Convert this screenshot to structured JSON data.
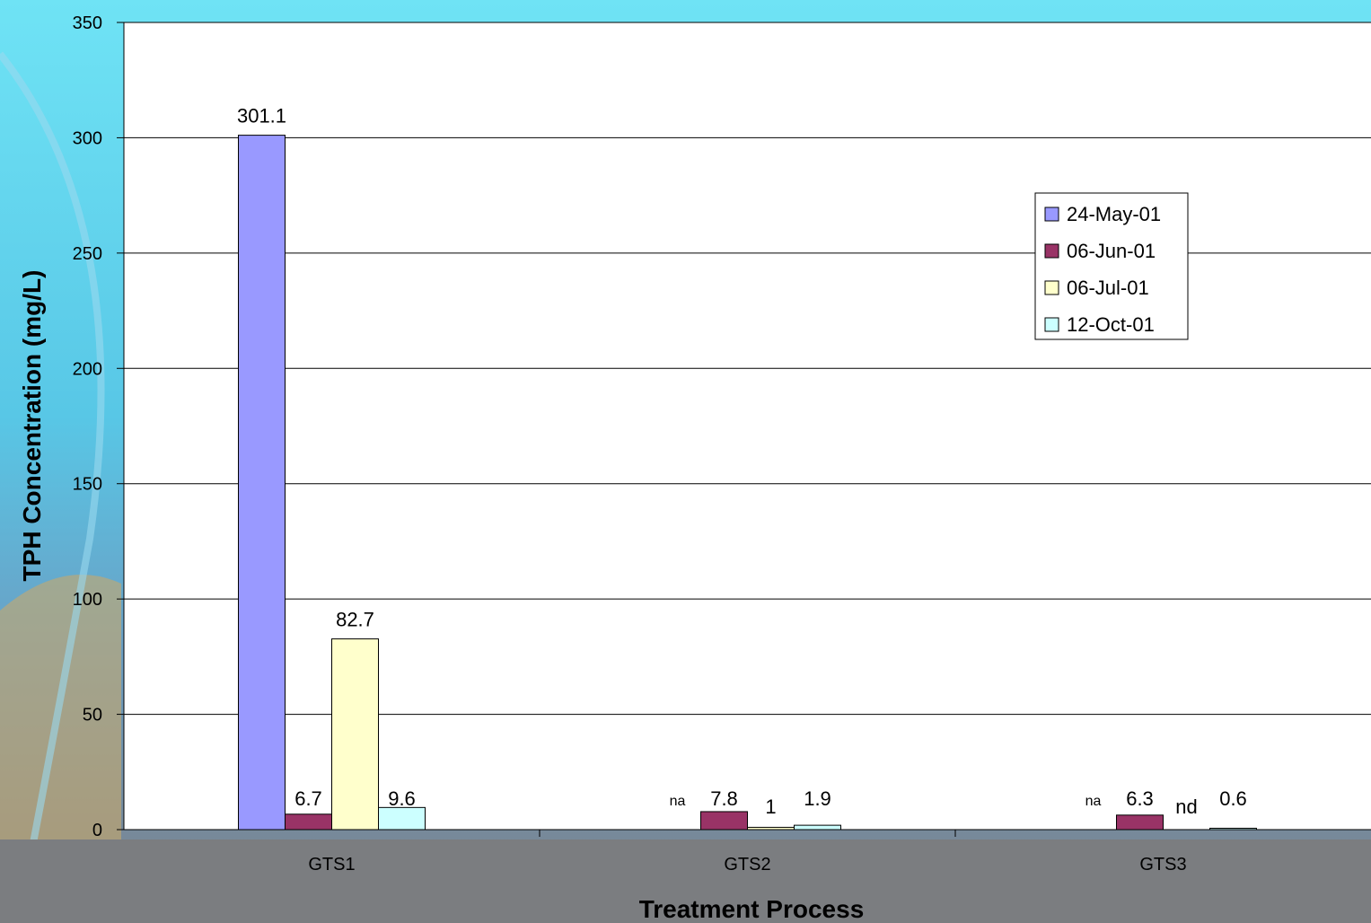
{
  "chart_data": {
    "type": "bar",
    "title": "",
    "xlabel": "Treatment Process",
    "ylabel": "TPH Concentration (mg/L)",
    "ylim": [
      0,
      350
    ],
    "yticks": [
      0,
      50,
      100,
      150,
      200,
      250,
      300,
      350
    ],
    "categories": [
      "GTS1",
      "GTS2",
      "GTS3"
    ],
    "series": [
      {
        "name": "24-May-01",
        "color": "#9999ff",
        "values": [
          301.1,
          null,
          null
        ],
        "labels": [
          "301.1",
          "na",
          "na"
        ]
      },
      {
        "name": "06-Jun-01",
        "color": "#993366",
        "values": [
          6.7,
          7.8,
          6.3
        ],
        "labels": [
          "6.7",
          "7.8",
          "6.3"
        ]
      },
      {
        "name": "06-Jul-01",
        "color": "#ffffcc",
        "values": [
          82.7,
          1,
          null
        ],
        "labels": [
          "82.7",
          "1",
          "nd"
        ]
      },
      {
        "name": "12-Oct-01",
        "color": "#ccffff",
        "values": [
          9.6,
          1.9,
          0.6
        ],
        "labels": [
          "9.6",
          "1.9",
          "0.6"
        ]
      }
    ],
    "grid": true,
    "legend": "top-right"
  }
}
